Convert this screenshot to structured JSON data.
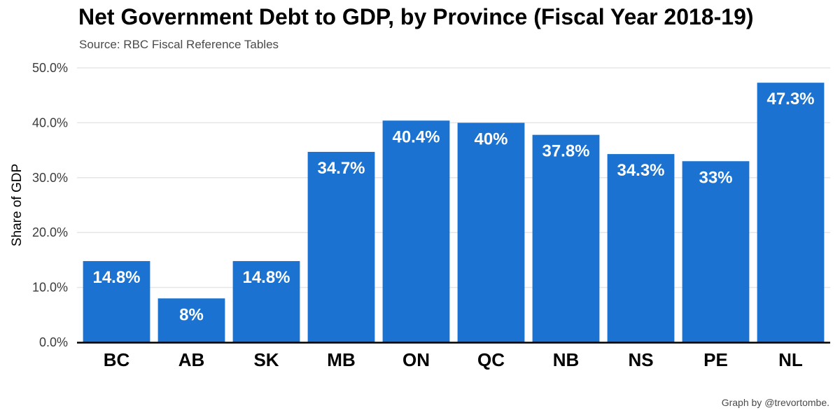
{
  "header": {
    "title": "Net Government Debt to GDP, by Province (Fiscal Year 2018-19)",
    "subtitle": "Source: RBC Fiscal Reference Tables"
  },
  "footer": {
    "caption": "Graph by @trevortombe."
  },
  "chart_data": {
    "type": "bar",
    "title": "Net Government Debt to GDP, by Province (Fiscal Year 2018-19)",
    "subtitle": "Source: RBC Fiscal Reference Tables",
    "xlabel": "",
    "ylabel": "Share of GDP",
    "categories": [
      "BC",
      "AB",
      "SK",
      "MB",
      "ON",
      "QC",
      "NB",
      "NS",
      "PE",
      "NL"
    ],
    "values": [
      14.8,
      8,
      14.8,
      34.7,
      40.4,
      40,
      37.8,
      34.3,
      33,
      47.3
    ],
    "data_labels": [
      "14.8%",
      "8%",
      "14.8%",
      "34.7%",
      "40.4%",
      "40%",
      "37.8%",
      "34.3%",
      "33%",
      "47.3%"
    ],
    "ylim": [
      0,
      50
    ],
    "yticks": [
      0,
      10,
      20,
      30,
      40,
      50
    ],
    "ytick_labels": [
      "0.0%",
      "10.0%",
      "20.0%",
      "30.0%",
      "40.0%",
      "50.0%"
    ],
    "grid": true,
    "legend": "none",
    "colors": {
      "bar": "#1b72d0",
      "grid": "#e6e6e6",
      "axis": "#000000",
      "label": "#ffffff"
    }
  }
}
